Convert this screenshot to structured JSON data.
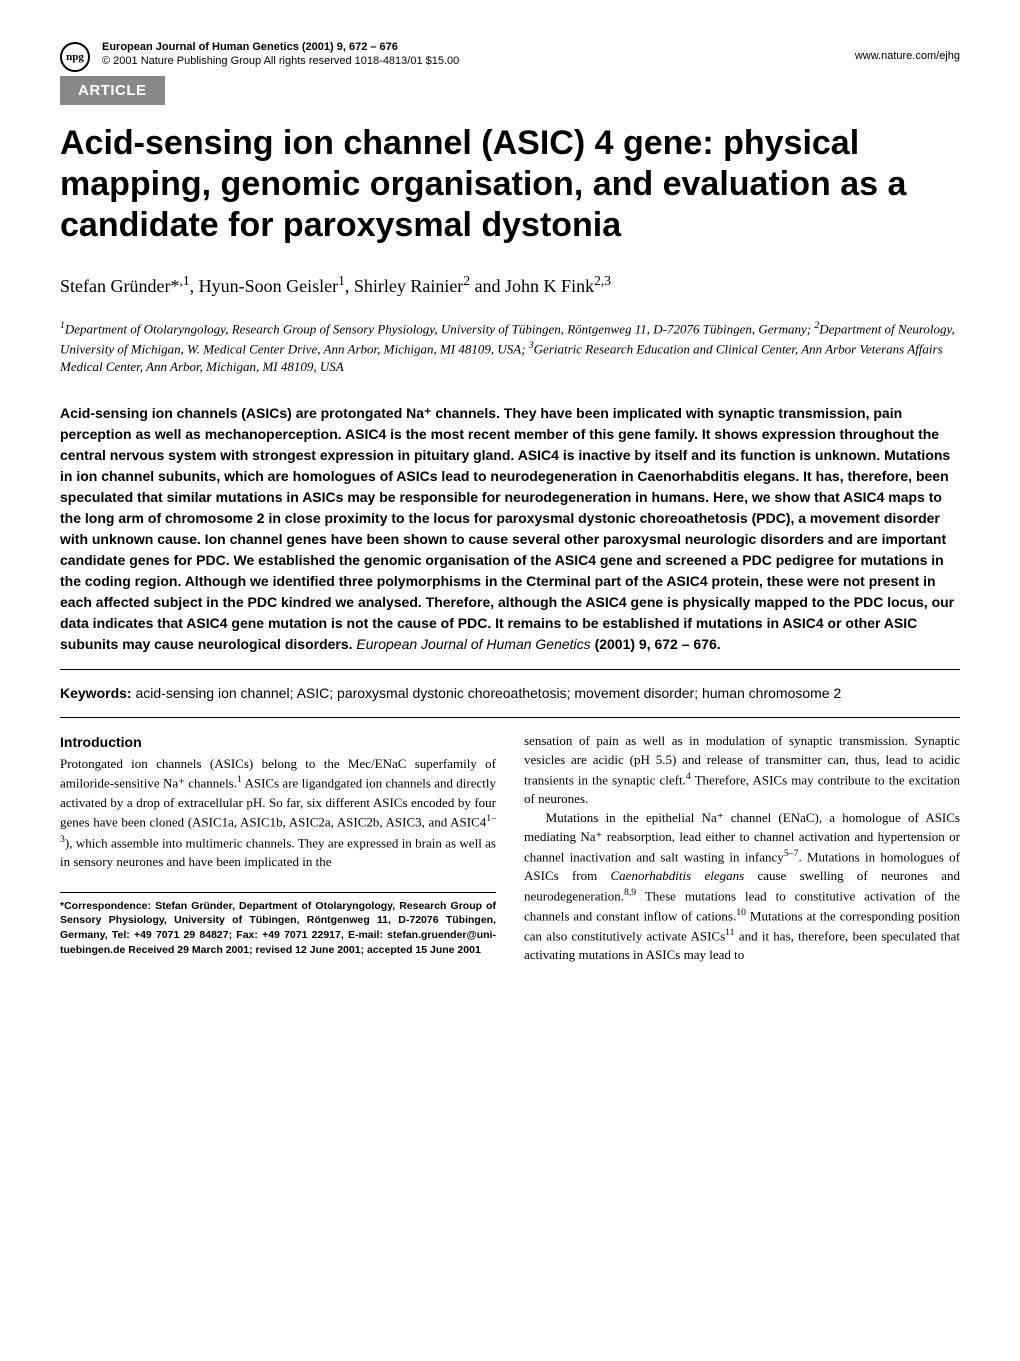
{
  "header": {
    "logo_text": "npg",
    "journal_line": "European Journal of Human Genetics (2001) 9, 672 – 676",
    "copyright_line": "© 2001 Nature Publishing Group   All rights reserved 1018-4813/01 $15.00",
    "website": "www.nature.com/ejhg"
  },
  "badge": "ARTICLE",
  "title": "Acid-sensing ion channel (ASIC) 4 gene: physical mapping, genomic organisation, and evaluation as a candidate for paroxysmal dystonia",
  "authors_html": "Stefan Gründer*<sup>,1</sup>, Hyun-Soon Geisler<sup>1</sup>, Shirley Rainier<sup>2</sup> and John K Fink<sup>2,3</sup>",
  "affiliations_html": "<sup>1</sup>Department of Otolaryngology, Research Group of Sensory Physiology, University of Tübingen, Röntgenweg 11, D-72076 Tübingen, Germany; <sup>2</sup>Department of Neurology, University of Michigan, W. Medical Center Drive, Ann Arbor, Michigan, MI 48109, USA; <sup>3</sup>Geriatric Research Education and Clinical Center, Ann Arbor Veterans Affairs Medical Center, Ann Arbor, Michigan, MI 48109, USA",
  "abstract": "Acid-sensing ion channels (ASICs) are protongated Na⁺ channels. They have been implicated with synaptic transmission, pain perception as well as mechanoperception. ASIC4 is the most recent member of this gene family. It shows expression throughout the central nervous system with strongest expression in pituitary gland. ASIC4 is inactive by itself and its function is unknown. Mutations in ion channel subunits, which are homologues of ASICs lead to neurodegeneration in Caenorhabditis elegans. It has, therefore, been speculated that similar mutations in ASICs may be responsible for neurodegeneration in humans. Here, we show that ASIC4 maps to the long arm of chromosome 2 in close proximity to the locus for paroxysmal dystonic choreoathetosis (PDC), a movement disorder with unknown cause. Ion channel genes have been shown to cause several other paroxysmal neurologic disorders and are important candidate genes for PDC. We established the genomic organisation of the ASIC4 gene and screened a PDC pedigree for mutations in the coding region. Although we identified three polymorphisms in the Cterminal part of the ASIC4 protein, these were not present in each affected subject in the PDC kindred we analysed. Therefore, although the ASIC4 gene is physically mapped to the PDC locus, our data indicates that ASIC4 gene mutation is not the cause of PDC. It remains to be established if mutations in ASIC4 or other ASIC subunits may cause neurological disorders.",
  "abstract_citation": {
    "journal": "European Journal of Human Genetics",
    "year_vol_pages": "(2001) 9, 672 – 676."
  },
  "keywords": {
    "label": "Keywords:",
    "text": "acid-sensing ion channel; ASIC; paroxysmal dystonic choreoathetosis; movement disorder; human chromosome 2"
  },
  "intro": {
    "heading": "Introduction",
    "left_html": "Protongated ion channels (ASICs) belong to the Mec/ENaC superfamily of amiloride-sensitive Na⁺ channels.<sup>1</sup> ASICs are ligandgated ion channels and directly activated by a drop of extracellular pH. So far, six different ASICs encoded by four genes have been cloned (ASIC1a, ASIC1b, ASIC2a, ASIC2b, ASIC3, and ASIC4<sup>1–3</sup>), which assemble into multimeric channels. They are expressed in brain as well as in sensory neurones and have been implicated in the",
    "right_html": "sensation of pain as well as in modulation of synaptic transmission. Synaptic vesicles are acidic (pH 5.5) and release of transmitter can, thus, lead to acidic transients in the synaptic cleft.<sup>4</sup> Therefore, ASICs may contribute to the excitation of neurones.<br>&nbsp;&nbsp;&nbsp;Mutations in the epithelial Na⁺ channel (ENaC), a homologue of ASICs mediating Na⁺ reabsorption, lead either to channel activation and hypertension or channel inactivation and salt wasting in infancy<sup>5–7</sup>. Mutations in homologues of ASICs from <i>Caenorhabditis elegans</i> cause swelling of neurones and neurodegeneration.<sup>8,9</sup> These mutations lead to constitutive activation of the channels and constant inflow of cations.<sup>10</sup> Mutations at the corresponding position can also constitutively activate ASICs<sup>11</sup> and it has, therefore, been speculated that activating mutations in ASICs may lead to"
  },
  "correspondence": "*Correspondence: Stefan Gründer, Department of Otolaryngology, Research Group of Sensory Physiology, University of Tübingen, Röntgenweg 11, D-72076 Tübingen, Germany, Tel: +49 7071 29 84827; Fax: +49 7071 22917, E-mail: stefan.gruender@uni-tuebingen.de\nReceived 29 March 2001; revised 12 June 2001; accepted 15 June 2001",
  "colors": {
    "badge_bg": "#888888",
    "badge_fg": "#ffffff",
    "text": "#000000",
    "background": "#ffffff"
  }
}
